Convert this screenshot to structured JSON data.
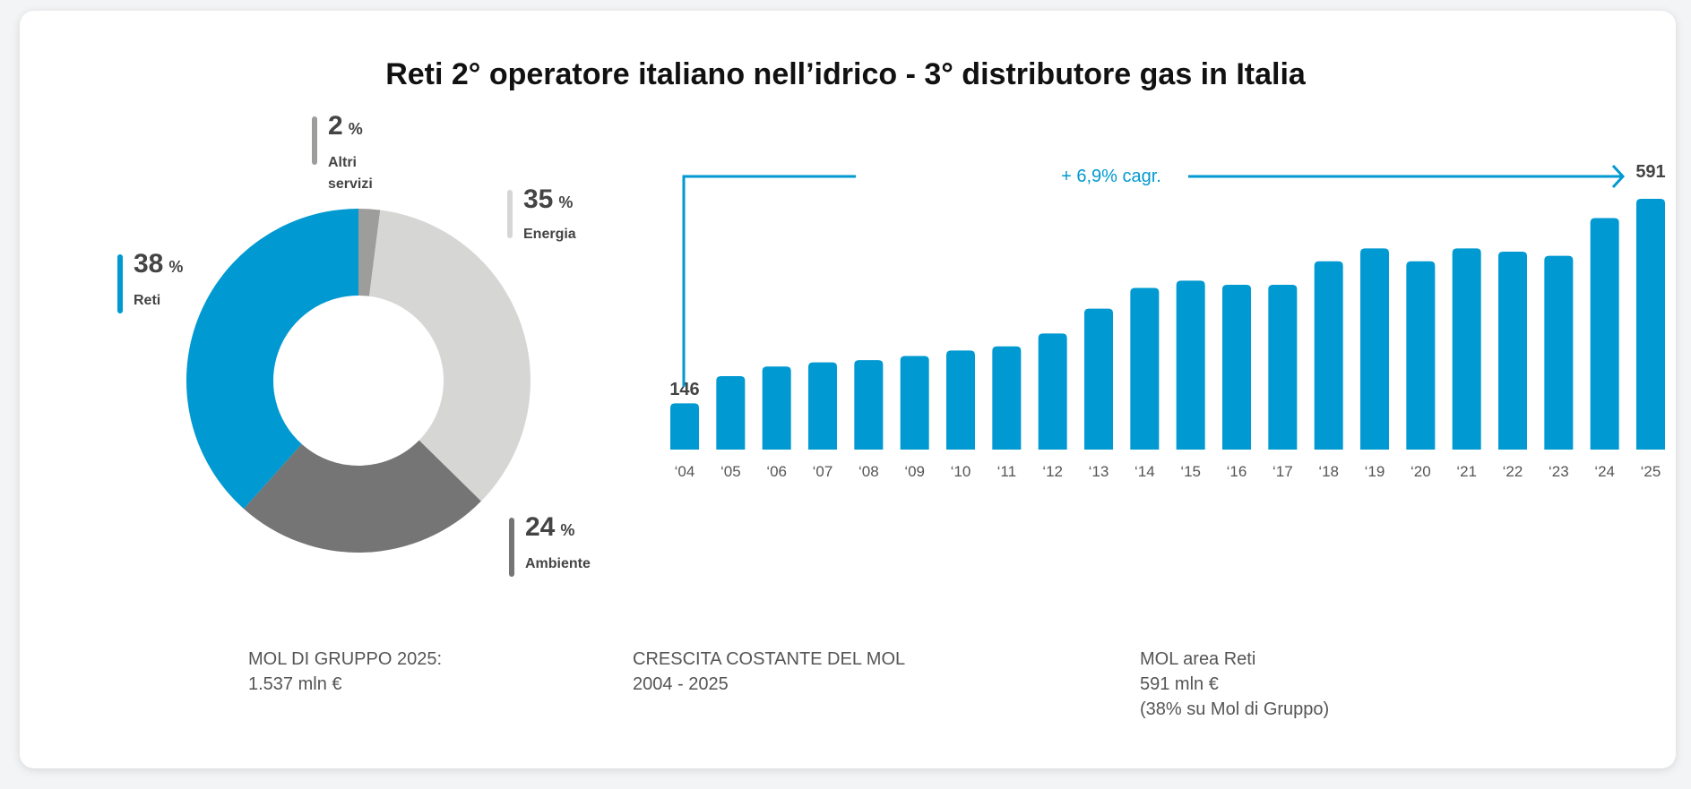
{
  "title": "Reti 2° operatore italiano nell’idrico - 3° distributore gas in Italia",
  "chart_data": [
    {
      "type": "pie",
      "donut": true,
      "slices": [
        {
          "label": "Altri servizi",
          "value": 2,
          "display": "2",
          "unit": "%",
          "color": "#9d9d9c"
        },
        {
          "label": "Energia",
          "value": 35,
          "display": "35",
          "unit": "%",
          "color": "#d6d6d5"
        },
        {
          "label": "Ambiente",
          "value": 24,
          "display": "24",
          "unit": "%",
          "color": "#747574"
        },
        {
          "label": "Reti",
          "value": 38,
          "display": "38",
          "unit": "%",
          "color": "#0099d1"
        }
      ]
    },
    {
      "type": "bar",
      "categories": [
        "‘04",
        "‘05",
        "‘06",
        "‘07",
        "‘08",
        "‘09",
        "‘10",
        "‘11",
        "‘12",
        "‘13",
        "‘14",
        "‘15",
        "‘16",
        "‘17",
        "‘18",
        "‘19",
        "‘20",
        "‘21",
        "‘22",
        "‘23",
        "‘24",
        "‘25"
      ],
      "values": [
        146,
        205,
        226,
        235,
        240,
        249,
        261,
        270,
        298,
        352,
        397,
        413,
        404,
        404,
        455,
        483,
        455,
        483,
        476,
        467,
        549,
        591
      ],
      "data_labels": {
        "first": "146",
        "last": "591"
      },
      "annotation": "+ 6,9% cagr.",
      "color": "#0099d1",
      "grid": false
    }
  ],
  "footer": [
    {
      "line1": "MOL DI GRUPPO 2025:",
      "line2": "1.537 mln €"
    },
    {
      "line1": "CRESCITA COSTANTE DEL MOL",
      "line2": "2004 - 2025"
    },
    {
      "line1": "MOL area Reti",
      "line2": "591 mln €",
      "line3": "(38% su Mol di Gruppo)"
    }
  ]
}
